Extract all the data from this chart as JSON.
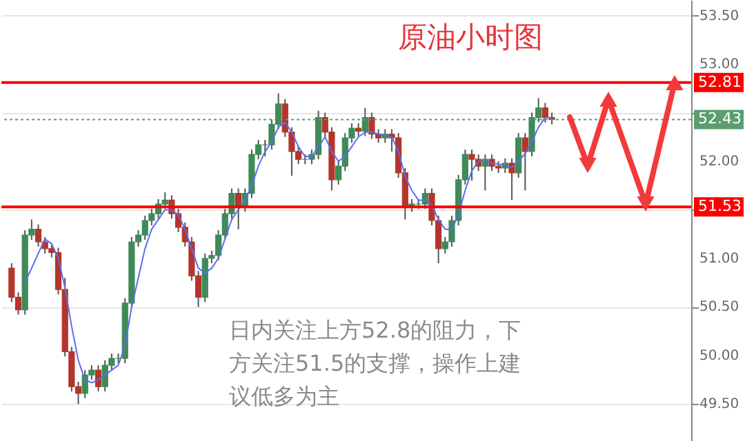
{
  "chart_data": {
    "type": "candlestick",
    "title": "原油小时图",
    "annotations": [
      "日内关注上方52.8的阻力，下方关注51.5的支撑，操作上建议低多为主"
    ],
    "categories": [
      null,
      null,
      null,
      null,
      null,
      null,
      null,
      null,
      null,
      null,
      null,
      null,
      null,
      null,
      null,
      null,
      null,
      null,
      null,
      null,
      null,
      null,
      null,
      null,
      null,
      null,
      null,
      null,
      null,
      null,
      null,
      null,
      null,
      null,
      null,
      null,
      null,
      null,
      null,
      null,
      null,
      null,
      null,
      null,
      null,
      null,
      null,
      null,
      null,
      null,
      null,
      null,
      null,
      null,
      null,
      null,
      null,
      null,
      null,
      null,
      null,
      null,
      null,
      null,
      null,
      null,
      null,
      null,
      null,
      null,
      null,
      null,
      null,
      null,
      null,
      null,
      null,
      null,
      null,
      null,
      null,
      null
    ],
    "ohlc": [
      [
        50.9,
        50.95,
        50.55,
        50.6
      ],
      [
        50.6,
        50.65,
        50.42,
        50.47
      ],
      [
        50.47,
        51.29,
        50.42,
        51.24
      ],
      [
        51.24,
        51.4,
        51.19,
        51.3
      ],
      [
        51.3,
        51.35,
        51.12,
        51.17
      ],
      [
        51.17,
        51.22,
        51.05,
        51.1
      ],
      [
        51.1,
        51.15,
        51.01,
        51.06
      ],
      [
        51.06,
        51.11,
        50.63,
        50.68
      ],
      [
        50.68,
        50.8,
        49.99,
        50.04
      ],
      [
        50.04,
        50.09,
        49.63,
        49.68
      ],
      [
        49.68,
        49.73,
        49.5,
        49.61
      ],
      [
        49.61,
        49.85,
        49.56,
        49.8
      ],
      [
        49.8,
        49.9,
        49.75,
        49.85
      ],
      [
        49.85,
        49.9,
        49.63,
        49.68
      ],
      [
        49.68,
        49.95,
        49.63,
        49.9
      ],
      [
        49.9,
        50.02,
        49.85,
        49.97
      ],
      [
        49.97,
        50.02,
        49.92,
        49.97
      ],
      [
        49.97,
        50.59,
        49.92,
        50.54
      ],
      [
        50.54,
        51.22,
        50.49,
        51.17
      ],
      [
        51.17,
        51.29,
        51.12,
        51.24
      ],
      [
        51.24,
        51.44,
        51.19,
        51.39
      ],
      [
        51.39,
        51.51,
        51.34,
        51.46
      ],
      [
        51.46,
        51.61,
        51.41,
        51.56
      ],
      [
        51.56,
        51.68,
        51.51,
        51.6
      ],
      [
        51.6,
        51.65,
        51.41,
        51.46
      ],
      [
        51.46,
        51.51,
        51.27,
        51.32
      ],
      [
        51.32,
        51.37,
        51.12,
        51.17
      ],
      [
        51.17,
        51.22,
        50.77,
        50.82
      ],
      [
        50.82,
        50.87,
        50.5,
        50.6
      ],
      [
        50.6,
        51.05,
        50.55,
        51.0
      ],
      [
        51.0,
        51.08,
        50.95,
        51.03
      ],
      [
        51.03,
        51.29,
        50.98,
        51.24
      ],
      [
        51.24,
        51.51,
        51.19,
        51.46
      ],
      [
        51.46,
        51.72,
        51.41,
        51.67
      ],
      [
        51.67,
        51.72,
        51.3,
        51.53
      ],
      [
        51.53,
        51.72,
        51.48,
        51.67
      ],
      [
        51.67,
        52.12,
        51.62,
        52.07
      ],
      [
        52.07,
        52.22,
        52.02,
        52.17
      ],
      [
        52.17,
        52.22,
        52.05,
        52.17
      ],
      [
        52.17,
        52.43,
        52.12,
        52.38
      ],
      [
        52.38,
        52.7,
        52.33,
        52.59
      ],
      [
        52.59,
        52.64,
        52.25,
        52.3
      ],
      [
        52.3,
        52.35,
        51.85,
        52.1
      ],
      [
        52.1,
        52.15,
        51.97,
        52.02
      ],
      [
        52.02,
        52.07,
        51.97,
        52.02
      ],
      [
        52.02,
        52.12,
        51.97,
        52.07
      ],
      [
        52.07,
        52.52,
        52.02,
        52.45
      ],
      [
        52.45,
        52.5,
        52.25,
        52.3
      ],
      [
        52.3,
        52.35,
        51.7,
        51.81
      ],
      [
        51.81,
        52.0,
        51.76,
        51.95
      ],
      [
        51.95,
        52.29,
        51.9,
        52.24
      ],
      [
        52.24,
        52.39,
        52.19,
        52.34
      ],
      [
        52.34,
        52.39,
        52.26,
        52.31
      ],
      [
        52.31,
        52.55,
        52.26,
        52.45
      ],
      [
        52.45,
        52.5,
        52.23,
        52.28
      ],
      [
        52.28,
        52.33,
        52.19,
        52.24
      ],
      [
        52.24,
        52.33,
        52.19,
        52.28
      ],
      [
        52.28,
        52.33,
        52.1,
        52.24
      ],
      [
        52.24,
        52.29,
        51.83,
        51.88
      ],
      [
        51.88,
        51.93,
        51.4,
        51.53
      ],
      [
        51.53,
        51.61,
        51.48,
        51.56
      ],
      [
        51.56,
        51.61,
        51.51,
        51.56
      ],
      [
        51.56,
        51.72,
        51.51,
        51.67
      ],
      [
        51.67,
        51.72,
        51.34,
        51.39
      ],
      [
        51.39,
        51.44,
        50.95,
        51.1
      ],
      [
        51.1,
        51.22,
        51.05,
        51.17
      ],
      [
        51.17,
        51.44,
        51.12,
        51.39
      ],
      [
        51.39,
        51.86,
        51.34,
        51.81
      ],
      [
        51.81,
        52.12,
        51.76,
        52.07
      ],
      [
        52.07,
        52.12,
        51.8,
        52.02
      ],
      [
        52.02,
        52.07,
        51.9,
        51.95
      ],
      [
        51.95,
        52.07,
        51.7,
        52.02
      ],
      [
        52.02,
        52.07,
        51.9,
        51.95
      ],
      [
        51.95,
        52.0,
        51.88,
        51.93
      ],
      [
        51.93,
        52.03,
        51.88,
        51.98
      ],
      [
        51.98,
        52.03,
        51.6,
        51.88
      ],
      [
        51.88,
        52.29,
        51.83,
        52.24
      ],
      [
        52.24,
        52.29,
        51.7,
        52.1
      ],
      [
        52.1,
        52.5,
        52.05,
        52.45
      ],
      [
        52.45,
        52.65,
        52.4,
        52.55
      ],
      [
        52.55,
        52.6,
        52.4,
        52.45
      ],
      [
        52.45,
        52.5,
        52.38,
        52.43
      ]
    ],
    "colors": [
      "#b3352b",
      "#b3352b",
      "#3e8a58",
      "#3e8a58",
      "#b3352b",
      "#b3352b",
      "#b3352b",
      "#b3352b",
      "#b3352b",
      "#b3352b",
      "#b3352b",
      "#3e8a58",
      "#3e8a58",
      "#b3352b",
      "#3e8a58",
      "#3e8a58",
      "#3e8a58",
      "#3e8a58",
      "#3e8a58",
      "#3e8a58",
      "#3e8a58",
      "#3e8a58",
      "#3e8a58",
      "#3e8a58",
      "#b3352b",
      "#b3352b",
      "#b3352b",
      "#b3352b",
      "#b3352b",
      "#3e8a58",
      "#3e8a58",
      "#3e8a58",
      "#3e8a58",
      "#3e8a58",
      "#b3352b",
      "#3e8a58",
      "#3e8a58",
      "#3e8a58",
      "#3e8a58",
      "#3e8a58",
      "#3e8a58",
      "#b3352b",
      "#b3352b",
      "#b3352b",
      "#3e8a58",
      "#3e8a58",
      "#3e8a58",
      "#b3352b",
      "#b3352b",
      "#3e8a58",
      "#3e8a58",
      "#3e8a58",
      "#b3352b",
      "#3e8a58",
      "#b3352b",
      "#b3352b",
      "#3e8a58",
      "#b3352b",
      "#b3352b",
      "#b3352b",
      "#3e8a58",
      "#3e8a58",
      "#3e8a58",
      "#b3352b",
      "#b3352b",
      "#3e8a58",
      "#3e8a58",
      "#3e8a58",
      "#3e8a58",
      "#b3352b",
      "#b3352b",
      "#3e8a58",
      "#b3352b",
      "#b3352b",
      "#3e8a58",
      "#b3352b",
      "#3e8a58",
      "#b3352b",
      "#3e8a58",
      "#3e8a58",
      "#b3352b",
      "#b3352b"
    ],
    "series": [
      {
        "type": "line",
        "color": "#5b6cf0",
        "values": [
          null,
          null,
          50.75,
          50.9,
          51.05,
          51.2,
          51.15,
          51.0,
          50.7,
          50.3,
          49.95,
          49.75,
          49.72,
          49.75,
          49.8,
          49.85,
          49.9,
          50.1,
          50.5,
          50.8,
          51.1,
          51.3,
          51.4,
          51.5,
          51.5,
          51.45,
          51.3,
          51.1,
          50.9,
          50.85,
          50.9,
          51.0,
          51.2,
          51.4,
          51.5,
          51.6,
          51.75,
          51.95,
          52.1,
          52.2,
          52.35,
          52.4,
          52.3,
          52.15,
          52.05,
          52.05,
          52.15,
          52.25,
          52.1,
          52.0,
          52.05,
          52.15,
          52.25,
          52.3,
          52.3,
          52.28,
          52.27,
          52.25,
          52.1,
          51.85,
          51.7,
          51.6,
          51.6,
          51.55,
          51.4,
          51.3,
          51.3,
          51.45,
          51.7,
          51.9,
          52.0,
          52.0,
          51.98,
          51.97,
          51.96,
          51.94,
          52.0,
          52.08,
          52.2,
          52.35,
          52.45,
          52.45
        ]
      }
    ],
    "ylim": [
      49.12,
      53.66
    ],
    "yticks": [
      {
        "value": 49.5,
        "label": "49.50"
      },
      {
        "value": 50,
        "label": "50.00"
      },
      {
        "value": 50.5,
        "label": "50.50"
      },
      {
        "value": 51,
        "label": "51.00"
      },
      {
        "value": 51.5,
        "label": null
      },
      {
        "value": 52,
        "label": "52.00"
      },
      {
        "value": 52.5,
        "label": null
      },
      {
        "value": 53,
        "label": "53.00"
      },
      {
        "value": 53.5,
        "label": "53.50"
      }
    ],
    "ref_lines": [
      {
        "axis": "y",
        "value": 52.81,
        "label": "52.81",
        "color": "#ff0000",
        "line_style": "solid"
      },
      {
        "axis": "y",
        "value": 51.53,
        "label": "51.53",
        "color": "#ff0000",
        "line_style": "solid"
      },
      {
        "axis": "y",
        "value": 52.43,
        "label": "52.43",
        "color": "#5a9e6f",
        "line_style": "dotted"
      }
    ],
    "grid": "y",
    "tick_labels": "y"
  }
}
